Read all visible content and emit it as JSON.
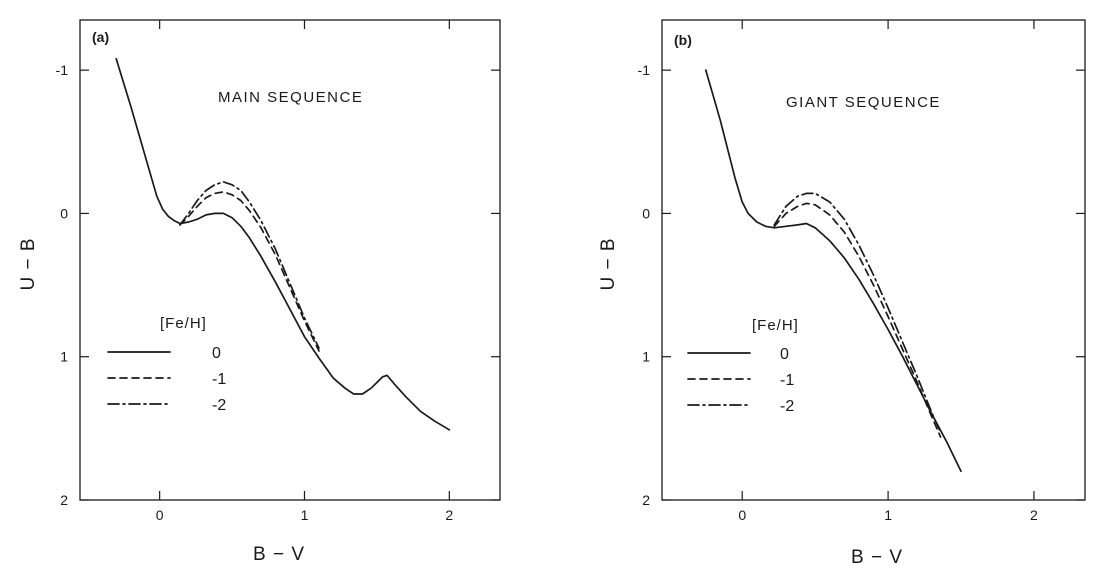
{
  "chart_data": [
    {
      "type": "line",
      "panel_label": "(a)",
      "annotation": "MAIN SEQUENCE",
      "xlabel": "B − V",
      "ylabel": "U − B",
      "xlim": [
        -0.55,
        2.35
      ],
      "ylim": [
        2.0,
        -1.35
      ],
      "y_inverted": true,
      "xticks": [
        0,
        1,
        2
      ],
      "yticks": [
        -1,
        0,
        1,
        2
      ],
      "xtick_labels": [
        "0",
        "1",
        "2"
      ],
      "ytick_labels": [
        "-1",
        "0",
        "1",
        "2"
      ],
      "legend": {
        "title": "[Fe/H]",
        "placement": "lower-left"
      },
      "series": [
        {
          "name": "0",
          "line_style": "solid",
          "x": [
            -0.3,
            -0.2,
            -0.1,
            -0.02,
            0.02,
            0.06,
            0.1,
            0.14,
            0.2,
            0.26,
            0.32,
            0.38,
            0.44,
            0.5,
            0.56,
            0.62,
            0.7,
            0.8,
            0.9,
            1.0,
            1.1,
            1.2,
            1.28,
            1.34,
            1.4,
            1.46,
            1.5,
            1.54,
            1.57,
            1.62,
            1.7,
            1.8,
            1.9,
            2.0
          ],
          "y": [
            -1.08,
            -0.75,
            -0.4,
            -0.12,
            -0.03,
            0.02,
            0.05,
            0.07,
            0.06,
            0.04,
            0.01,
            0.0,
            0.0,
            0.03,
            0.09,
            0.17,
            0.3,
            0.48,
            0.67,
            0.86,
            1.01,
            1.15,
            1.22,
            1.26,
            1.26,
            1.22,
            1.18,
            1.14,
            1.13,
            1.19,
            1.28,
            1.38,
            1.45,
            1.51
          ]
        },
        {
          "name": "-1",
          "line_style": "dashed",
          "x": [
            0.14,
            0.2,
            0.26,
            0.32,
            0.38,
            0.44,
            0.5,
            0.56,
            0.62,
            0.7,
            0.8,
            0.9,
            1.0,
            1.1
          ],
          "y": [
            0.08,
            0.02,
            -0.05,
            -0.11,
            -0.14,
            -0.15,
            -0.13,
            -0.09,
            -0.02,
            0.1,
            0.29,
            0.52,
            0.75,
            0.96
          ]
        },
        {
          "name": "-2",
          "line_style": "dashdot",
          "x": [
            0.14,
            0.2,
            0.26,
            0.32,
            0.38,
            0.44,
            0.5,
            0.56,
            0.62,
            0.7,
            0.8,
            0.9,
            1.0,
            1.1
          ],
          "y": [
            0.08,
            0.0,
            -0.09,
            -0.16,
            -0.2,
            -0.22,
            -0.2,
            -0.16,
            -0.08,
            0.05,
            0.25,
            0.49,
            0.73,
            0.94
          ]
        }
      ]
    },
    {
      "type": "line",
      "panel_label": "(b)",
      "annotation": "GIANT SEQUENCE",
      "xlabel": "B − V",
      "ylabel": "U − B",
      "xlim": [
        -0.55,
        2.35
      ],
      "ylim": [
        2.0,
        -1.35
      ],
      "y_inverted": true,
      "xticks": [
        0,
        1,
        2
      ],
      "yticks": [
        -1,
        0,
        1,
        2
      ],
      "xtick_labels": [
        "0",
        "1",
        "2"
      ],
      "ytick_labels": [
        "-1",
        "0",
        "1",
        "2"
      ],
      "legend": {
        "title": "[Fe/H]",
        "placement": "lower-left"
      },
      "series": [
        {
          "name": "0",
          "line_style": "solid",
          "x": [
            -0.25,
            -0.15,
            -0.05,
            0.0,
            0.04,
            0.1,
            0.16,
            0.22,
            0.3,
            0.38,
            0.44,
            0.5,
            0.6,
            0.7,
            0.8,
            0.9,
            1.0,
            1.1,
            1.2,
            1.3,
            1.4,
            1.5
          ],
          "y": [
            -1.0,
            -0.65,
            -0.25,
            -0.08,
            0.0,
            0.06,
            0.09,
            0.1,
            0.09,
            0.08,
            0.07,
            0.1,
            0.19,
            0.31,
            0.46,
            0.63,
            0.81,
            1.0,
            1.2,
            1.4,
            1.59,
            1.8
          ]
        },
        {
          "name": "-1",
          "line_style": "dashed",
          "x": [
            0.22,
            0.3,
            0.38,
            0.44,
            0.5,
            0.6,
            0.7,
            0.8,
            0.9,
            1.0,
            1.1,
            1.2,
            1.3,
            1.36
          ],
          "y": [
            0.09,
            0.0,
            -0.05,
            -0.07,
            -0.06,
            0.01,
            0.13,
            0.3,
            0.5,
            0.72,
            0.95,
            1.18,
            1.42,
            1.56
          ]
        },
        {
          "name": "-2",
          "line_style": "dashdot",
          "x": [
            0.22,
            0.3,
            0.38,
            0.44,
            0.5,
            0.6,
            0.7,
            0.8,
            0.9,
            1.0,
            1.1,
            1.2,
            1.3,
            1.36
          ],
          "y": [
            0.08,
            -0.05,
            -0.12,
            -0.14,
            -0.14,
            -0.08,
            0.04,
            0.22,
            0.43,
            0.66,
            0.9,
            1.14,
            1.39,
            1.53
          ]
        }
      ]
    }
  ]
}
